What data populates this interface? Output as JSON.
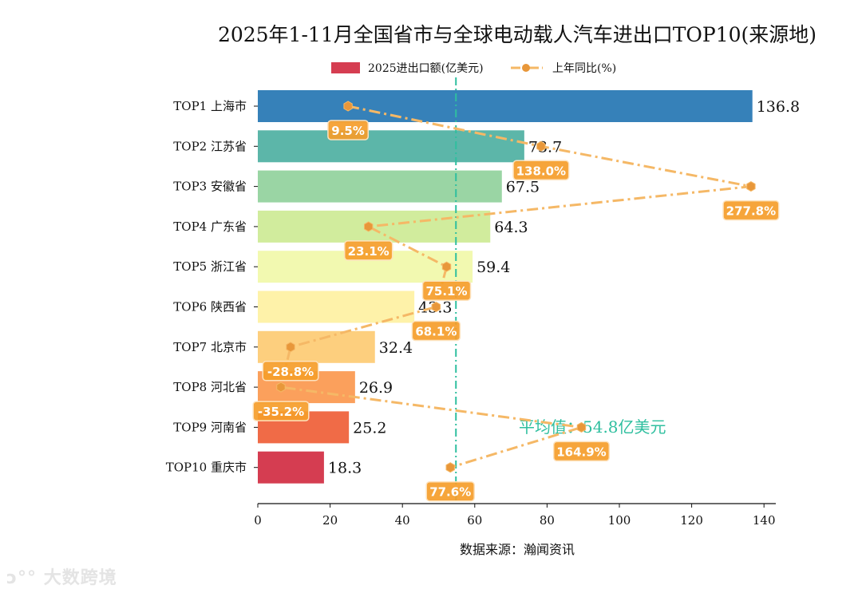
{
  "chart_data": {
    "type": "bar",
    "orientation": "horizontal",
    "title": "2025年1-11月全国省市与全球电动载人汽车进出口TOP10(来源地)",
    "xlabel": "数据来源：瀚闻资讯",
    "xlim": [
      0,
      145
    ],
    "xticks": [
      0,
      20,
      40,
      60,
      80,
      100,
      120,
      140
    ],
    "categories": [
      "TOP1 上海市",
      "TOP2 江苏省",
      "TOP3 安徽省",
      "TOP4 广东省",
      "TOP5 浙江省",
      "TOP6 陕西省",
      "TOP7 北京市",
      "TOP8 河北省",
      "TOP9 河南省",
      "TOP10 重庆市"
    ],
    "series": [
      {
        "name": "2025进出口额(亿美元)",
        "type": "bar",
        "values": [
          136.8,
          73.7,
          67.5,
          64.3,
          59.4,
          43.3,
          32.4,
          26.9,
          25.2,
          18.3
        ],
        "colors": [
          "#3681b9",
          "#5cb6a9",
          "#9ad5a4",
          "#d1ec9d",
          "#f2f9b0",
          "#fef2a9",
          "#fdcf7e",
          "#fba05c",
          "#f06b47",
          "#d53d51"
        ]
      },
      {
        "name": "上年同比(%)",
        "type": "line",
        "values": [
          9.5,
          138.0,
          277.8,
          23.1,
          75.1,
          68.1,
          -28.8,
          -35.2,
          164.9,
          77.6
        ],
        "color": "#f5b866",
        "labels": [
          "9.5%",
          "138.0%",
          "277.8%",
          "23.1%",
          "75.1%",
          "68.1%",
          "-28.8%",
          "-35.2%",
          "164.9%",
          "77.6%"
        ]
      }
    ],
    "average": {
      "value": 54.8,
      "label": "平均值：54.8亿美元",
      "color": "#2fbf9f"
    },
    "legend": {
      "placement": "top-center",
      "entries": [
        "2025进出口额(亿美元)",
        "上年同比(%)"
      ]
    },
    "grid": false
  },
  "watermark": "大数跨境"
}
